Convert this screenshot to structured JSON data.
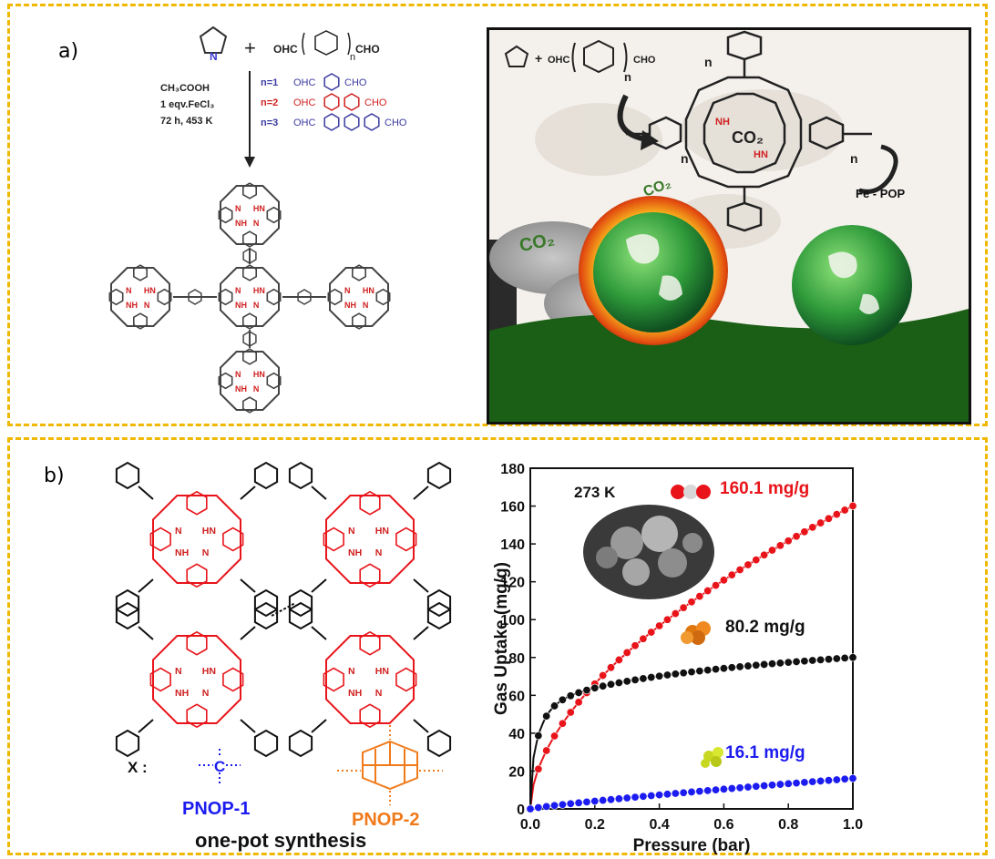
{
  "panel_a": {
    "label": "a)",
    "reagent": "OHC",
    "reagent_tail": "CHO",
    "sub_n": "n",
    "plus": "+",
    "conditions": [
      "CH₃COOH",
      "1 eqv.FeCl₃",
      "72 h, 453 K"
    ],
    "n_variants": [
      {
        "n": "n=1",
        "color": "#3a3aa0",
        "left": "OHC",
        "right": "CHO"
      },
      {
        "n": "n=2",
        "color": "#d02020",
        "left": "OHC",
        "right": "CHO"
      },
      {
        "n": "n=3",
        "color": "#3a3aa0",
        "left": "OHC",
        "right": "CHO"
      }
    ],
    "porphyrin_nh": "NH",
    "porphyrin_hn": "HN",
    "porphyrin_n": "N"
  },
  "photo": {
    "eq_left": "OHC",
    "eq_right": "CHO",
    "n": "n",
    "co2_center": "CO₂",
    "co2_fire": "CO₂",
    "co2_smoke": "CO₂",
    "fe_pop": "Fe - POP",
    "nh": "NH",
    "hn": "HN"
  },
  "panel_b": {
    "label": "b)",
    "x_label": "X :",
    "x_symbol": "C",
    "pnop1": "PNOP-1",
    "pnop2": "PNOP-2",
    "synthesis": "one-pot synthesis",
    "nh": "NH",
    "hn": "HN",
    "n": "N",
    "h": "H"
  },
  "chart_data": {
    "type": "scatter",
    "temperature_label": "273 K",
    "xlabel": "Pressure (bar)",
    "ylabel": "Gas Uptake (mg/g)",
    "xlim": [
      0,
      1.0
    ],
    "ylim": [
      0,
      180
    ],
    "x_ticks": [
      "0.0",
      "0.2",
      "0.4",
      "0.6",
      "0.8",
      "1.0"
    ],
    "y_ticks": [
      "0",
      "20",
      "40",
      "60",
      "80",
      "100",
      "120",
      "140",
      "160",
      "180"
    ],
    "series": [
      {
        "color": "#e8141a",
        "annotation": "160.1 mg/g",
        "ann_color": "#e8141a",
        "ann_value": 160.1,
        "a": 160.1,
        "p": 0.55,
        "b": 0
      },
      {
        "color": "#111111",
        "annotation": "80.2 mg/g",
        "ann_color": "#111111",
        "ann_value": 80.2,
        "a": 54,
        "p": 0.22,
        "b": 26
      },
      {
        "color": "#1c1cf0",
        "annotation": "16.1 mg/g",
        "ann_color": "#1c1cf0",
        "ann_value": 16.1,
        "a": 16.1,
        "p": 0.85,
        "b": 0
      }
    ]
  }
}
